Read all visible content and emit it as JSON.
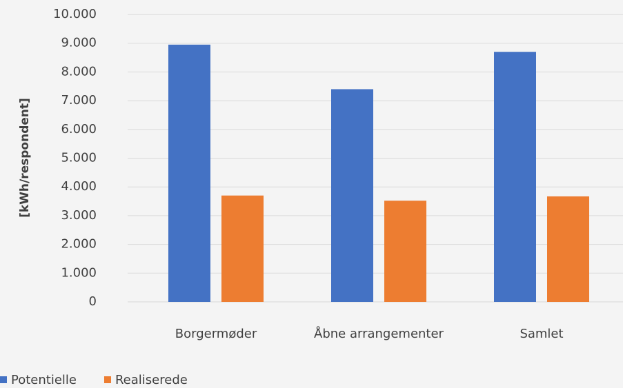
{
  "chart_data": {
    "type": "bar",
    "y_label": "[kWh/respondent]",
    "categories": [
      "Borgermøder",
      "Åbne arrangementer",
      "Samlet"
    ],
    "series": [
      {
        "name": "Potentielle",
        "color": "#4472c4",
        "values": [
          8950,
          7400,
          8700
        ]
      },
      {
        "name": "Realiserede",
        "color": "#ed7d31",
        "values": [
          3700,
          3520,
          3670
        ]
      }
    ],
    "ylim": [
      0,
      10000
    ],
    "yticks": [
      0,
      {
        "value": 1000,
        "label": "1.000"
      },
      {
        "value": 2000,
        "label": "2.000"
      },
      {
        "value": 3000,
        "label": "3.000"
      },
      {
        "value": 4000,
        "label": "4.000"
      },
      {
        "value": 5000,
        "label": "5.000"
      },
      {
        "value": 6000,
        "label": "6.000"
      },
      {
        "value": 7000,
        "label": "7.000"
      },
      {
        "value": 8000,
        "label": "8.000"
      },
      {
        "value": 9000,
        "label": "9.000"
      },
      {
        "value": 10000,
        "label": "10.000"
      }
    ],
    "grid": true,
    "legend": "bottom-left"
  }
}
